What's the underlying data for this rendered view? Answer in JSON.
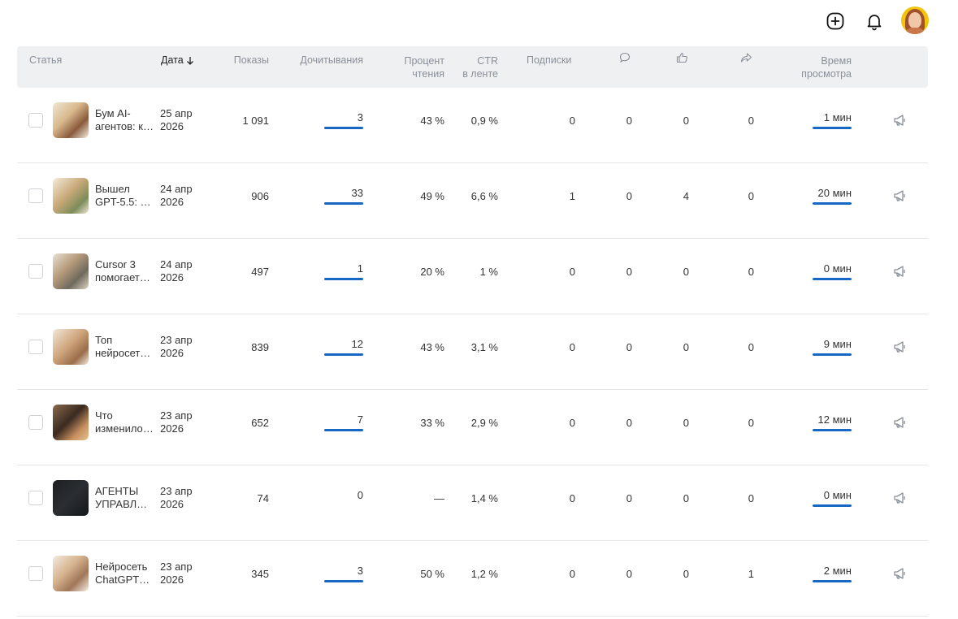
{
  "header": {
    "add_icon": "plus-square-icon",
    "bell_icon": "bell-icon",
    "avatar_icon": "user-avatar"
  },
  "columns": {
    "article": "Статья",
    "date": "Дата",
    "impressions": "Показы",
    "read_through": "Дочитывания",
    "read_percent_1": "Процент",
    "read_percent_2": "чтения",
    "ctr_1": "CTR",
    "ctr_2": "в ленте",
    "subscriptions": "Подписки",
    "comments_icon": "comment-icon",
    "likes_icon": "thumbs-up-icon",
    "shares_icon": "share-icon",
    "view_time_1": "Время",
    "view_time_2": "просмотра"
  },
  "accent_color": "#1767c5",
  "rows": [
    {
      "title1": "Бум AI-",
      "title2": "агентов: к…",
      "date1": "25 апр",
      "date2": "2026",
      "impressions": "1 091",
      "read_through": "3",
      "read_percent": "43 %",
      "ctr": "0,9 %",
      "subs": "0",
      "comments": "0",
      "likes": "0",
      "shares": "0",
      "view_time": "1 мин"
    },
    {
      "title1": "Вышел",
      "title2": "GPT-5.5: к…",
      "date1": "24 апр",
      "date2": "2026",
      "impressions": "906",
      "read_through": "33",
      "read_percent": "49 %",
      "ctr": "6,6 %",
      "subs": "1",
      "comments": "0",
      "likes": "4",
      "shares": "0",
      "view_time": "20 мин"
    },
    {
      "title1": "Cursor 3",
      "title2": "помогает…",
      "date1": "24 апр",
      "date2": "2026",
      "impressions": "497",
      "read_through": "1",
      "read_percent": "20 %",
      "ctr": "1 %",
      "subs": "0",
      "comments": "0",
      "likes": "0",
      "shares": "0",
      "view_time": "0 мин"
    },
    {
      "title1": "Топ",
      "title2": "нейросете…",
      "date1": "23 апр",
      "date2": "2026",
      "impressions": "839",
      "read_through": "12",
      "read_percent": "43 %",
      "ctr": "3,1 %",
      "subs": "0",
      "comments": "0",
      "likes": "0",
      "shares": "0",
      "view_time": "9 мин"
    },
    {
      "title1": "Что",
      "title2": "изменило…",
      "date1": "23 апр",
      "date2": "2026",
      "impressions": "652",
      "read_through": "7",
      "read_percent": "33 %",
      "ctr": "2,9 %",
      "subs": "0",
      "comments": "0",
      "likes": "0",
      "shares": "0",
      "view_time": "12 мин"
    },
    {
      "title1": "АГЕНТЫ",
      "title2": "УПРАВЛЯ…",
      "date1": "23 апр",
      "date2": "2026",
      "impressions": "74",
      "read_through": "0",
      "read_percent": "—",
      "ctr": "1,4 %",
      "subs": "0",
      "comments": "0",
      "likes": "0",
      "shares": "0",
      "view_time": "0 мин"
    },
    {
      "title1": "Нейросеть",
      "title2": "ChatGPT…",
      "date1": "23 апр",
      "date2": "2026",
      "impressions": "345",
      "read_through": "3",
      "read_percent": "50 %",
      "ctr": "1,2 %",
      "subs": "0",
      "comments": "0",
      "likes": "0",
      "shares": "1",
      "view_time": "2 мин"
    }
  ]
}
